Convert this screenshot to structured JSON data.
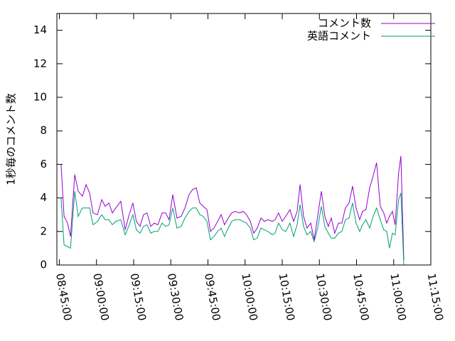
{
  "chart_data": {
    "type": "line",
    "ylabel": "1秒毎のコメント数",
    "x": [
      525.7,
      526.9,
      528.3,
      529.5,
      531.2,
      532.6,
      534.3,
      535.8,
      537.2,
      538.6,
      540.4,
      542.1,
      543.5,
      545.0,
      546.4,
      547.8,
      549.8,
      551.6,
      553.0,
      554.7,
      556.1,
      557.6,
      559.0,
      560.4,
      561.9,
      563.3,
      564.8,
      566.5,
      567.9,
      569.3,
      570.8,
      572.5,
      574.2,
      575.7,
      577.4,
      578.8,
      580.3,
      581.7,
      583.1,
      584.6,
      586.0,
      587.4,
      588.9,
      590.3,
      591.7,
      593.2,
      594.6,
      596.0,
      597.8,
      599.2,
      600.6,
      602.1,
      603.5,
      604.9,
      606.4,
      607.8,
      609.2,
      611.0,
      612.1,
      613.5,
      615.0,
      616.4,
      618.1,
      619.6,
      621.0,
      622.2,
      623.6,
      625.0,
      626.5,
      627.9,
      629.3,
      630.8,
      632.2,
      633.6,
      634.8,
      636.2,
      637.7,
      639.1,
      640.5,
      642.0,
      643.4,
      644.8,
      646.3,
      647.4,
      648.8,
      650.3,
      651.7,
      653.1,
      654.6,
      656.0,
      657.2,
      658.3,
      659.5,
      660.6,
      662.0,
      662.9,
      664.1
    ],
    "series": [
      {
        "name": "コメント数",
        "color": "#9400d3",
        "values": [
          6.0,
          2.9,
          2.5,
          1.7,
          5.4,
          4.4,
          4.1,
          4.8,
          4.3,
          3.1,
          3.0,
          3.9,
          3.5,
          3.7,
          3.1,
          3.4,
          3.8,
          2.1,
          2.9,
          3.7,
          2.6,
          2.3,
          3.0,
          3.1,
          2.3,
          2.5,
          2.4,
          3.1,
          3.1,
          2.7,
          4.2,
          2.8,
          2.9,
          3.4,
          4.2,
          4.5,
          4.6,
          3.7,
          3.5,
          3.3,
          2.0,
          2.2,
          2.6,
          3.0,
          2.4,
          2.8,
          3.1,
          3.2,
          3.1,
          3.2,
          3.0,
          2.6,
          1.9,
          2.2,
          2.8,
          2.6,
          2.7,
          2.6,
          2.7,
          3.1,
          2.6,
          2.9,
          3.3,
          2.6,
          3.2,
          4.8,
          2.9,
          2.2,
          2.5,
          1.5,
          2.9,
          4.4,
          2.9,
          2.3,
          2.8,
          1.9,
          2.5,
          2.5,
          3.4,
          3.7,
          4.7,
          3.4,
          2.7,
          3.2,
          3.3,
          4.6,
          5.3,
          6.1,
          3.5,
          3.1,
          2.5,
          2.9,
          3.2,
          2.4,
          5.5,
          6.5,
          0.3
        ]
      },
      {
        "name": "英語コメント",
        "color": "#009e73",
        "values": [
          4.0,
          1.2,
          1.1,
          1.0,
          4.4,
          2.9,
          3.4,
          3.4,
          3.4,
          2.4,
          2.6,
          3.0,
          2.7,
          2.7,
          2.4,
          2.6,
          2.7,
          1.8,
          2.3,
          3.0,
          2.1,
          1.9,
          2.3,
          2.4,
          1.9,
          2.0,
          2.0,
          2.5,
          2.3,
          2.4,
          3.4,
          2.2,
          2.3,
          2.8,
          3.2,
          3.4,
          3.4,
          3.0,
          2.9,
          2.6,
          1.5,
          1.7,
          2.0,
          2.2,
          1.7,
          2.2,
          2.6,
          2.7,
          2.7,
          2.6,
          2.5,
          2.2,
          1.5,
          1.6,
          2.2,
          2.1,
          2.0,
          1.8,
          1.9,
          2.5,
          2.1,
          2.0,
          2.5,
          1.7,
          2.4,
          3.6,
          2.3,
          1.8,
          2.0,
          1.4,
          2.2,
          3.5,
          2.3,
          1.9,
          1.6,
          1.6,
          1.9,
          2.0,
          2.7,
          2.8,
          3.7,
          2.5,
          2.0,
          2.4,
          2.7,
          2.2,
          2.9,
          3.4,
          2.7,
          2.1,
          2.0,
          1.0,
          1.9,
          1.8,
          3.9,
          4.3,
          0.0
        ]
      }
    ],
    "xlim": [
      524,
      675
    ],
    "xticks": [
      {
        "value": 525,
        "label": "08:45:00"
      },
      {
        "value": 540,
        "label": "09:00:00"
      },
      {
        "value": 555,
        "label": "09:15:00"
      },
      {
        "value": 570,
        "label": "09:30:00"
      },
      {
        "value": 585,
        "label": "09:45:00"
      },
      {
        "value": 600,
        "label": "10:00:00"
      },
      {
        "value": 615,
        "label": "10:15:00"
      },
      {
        "value": 630,
        "label": "10:30:00"
      },
      {
        "value": 645,
        "label": "10:45:00"
      },
      {
        "value": 660,
        "label": "11:00:00"
      },
      {
        "value": 675,
        "label": "11:15:00"
      }
    ],
    "ylim": [
      0,
      15
    ],
    "yticks": [
      0,
      2,
      4,
      6,
      8,
      10,
      12,
      14
    ],
    "legend": "top-right"
  }
}
